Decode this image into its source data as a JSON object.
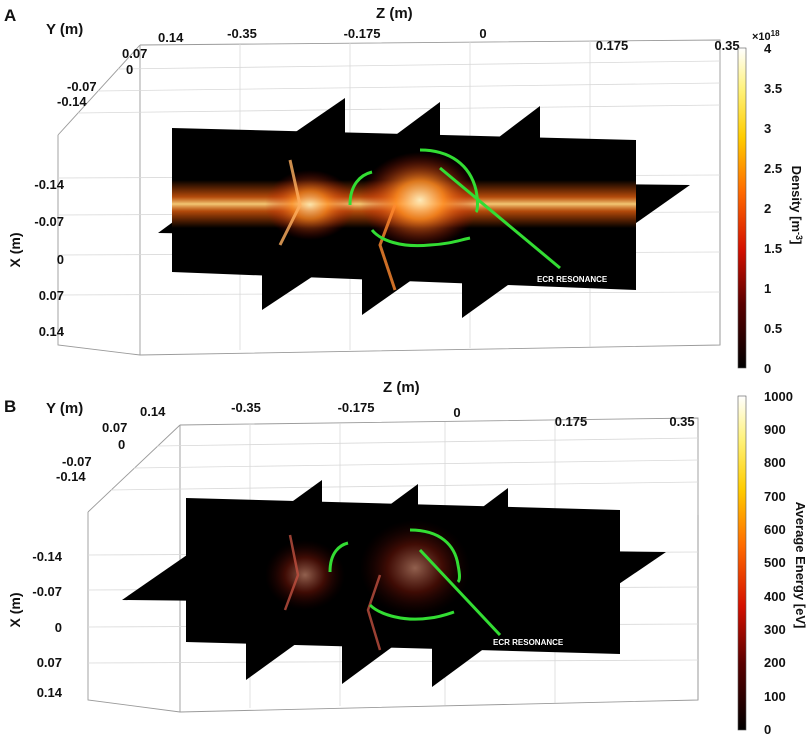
{
  "colors": {
    "ecr_curve": "#33dd33",
    "slice_bg": "#000000"
  },
  "chart_data": [
    {
      "panel": "A",
      "type": "heatmap",
      "plot": "3D orthogonal slices",
      "xlabel": "Z (m)",
      "ylabel": "Y (m)",
      "zlabel": "X (m)",
      "z_ticks": [
        "-0.35",
        "-0.175",
        "0",
        "0.175",
        "0.35"
      ],
      "y_ticks": [
        "0.14",
        "0.07",
        "0",
        "-0.07",
        "-0.14"
      ],
      "x_ticks": [
        "-0.14",
        "-0.07",
        "0",
        "0.07",
        "0.14"
      ],
      "colorbar_label": "Density [m",
      "colorbar_label_sup": "-3",
      "colorbar_label_end": "]",
      "colorbar_multiplier": "×10",
      "colorbar_multiplier_exp": "18",
      "colorbar_range": [
        0,
        4
      ],
      "colorbar_ticks": [
        "4",
        "3.5",
        "3",
        "2.5",
        "2",
        "1.5",
        "1",
        "0.5",
        "0"
      ],
      "colormap": "hot",
      "annotation": "ECR RESONANCE"
    },
    {
      "panel": "B",
      "type": "heatmap",
      "plot": "3D orthogonal slices",
      "xlabel": "Z (m)",
      "ylabel": "Y (m)",
      "zlabel": "X (m)",
      "z_ticks": [
        "-0.35",
        "-0.175",
        "0",
        "0.175",
        "0.35"
      ],
      "y_ticks": [
        "0.14",
        "0.07",
        "0",
        "-0.07",
        "-0.14"
      ],
      "x_ticks": [
        "-0.14",
        "-0.07",
        "0",
        "0.07",
        "0.14"
      ],
      "colorbar_label": "Average Energy [eV]",
      "colorbar_range": [
        0,
        1000
      ],
      "colorbar_ticks": [
        "1000",
        "900",
        "800",
        "700",
        "600",
        "500",
        "400",
        "300",
        "200",
        "100",
        "0"
      ],
      "colormap": "hot",
      "annotation": "ECR RESONANCE"
    }
  ]
}
